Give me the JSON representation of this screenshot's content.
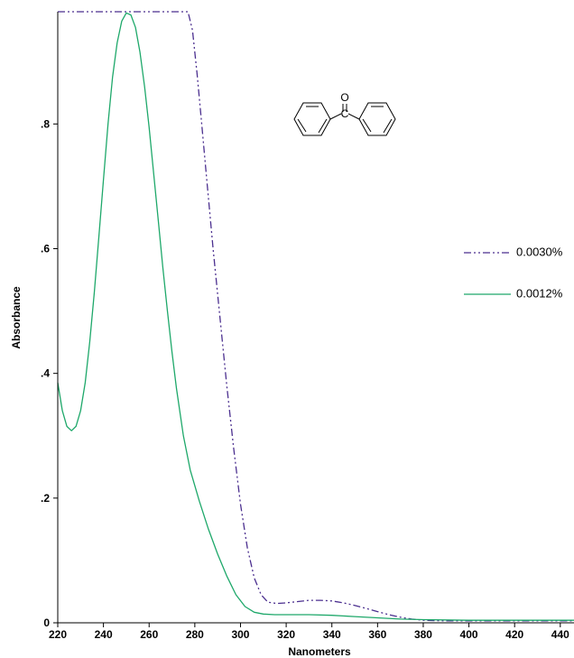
{
  "chart_data": {
    "type": "line",
    "xlabel": "Nanometers",
    "ylabel": "Absorbance",
    "xlim": [
      220,
      446
    ],
    "ylim": [
      0,
      0.98
    ],
    "x_ticks": [
      220,
      240,
      260,
      280,
      300,
      320,
      340,
      360,
      380,
      400,
      420,
      440
    ],
    "x_tick_labels": [
      "220",
      "240",
      "260",
      "280",
      "300",
      "320",
      "340",
      "360",
      "380",
      "400",
      "420",
      "440"
    ],
    "y_ticks": [
      0,
      0.2,
      0.4,
      0.6,
      0.8
    ],
    "y_tick_labels": [
      "0",
      ".2",
      ".4",
      ".6",
      ".8"
    ],
    "legend_placement": "right",
    "structure_labels": {
      "oxygen": "O",
      "carbon": "C"
    },
    "series": [
      {
        "name": "0.0030%",
        "color": "#4b2f8f",
        "dash": "dash-dot-dot",
        "x": [
          220,
          230,
          240,
          250,
          260,
          270,
          277,
          279,
          281,
          283,
          285,
          288,
          291,
          294,
          297,
          300,
          303,
          306,
          309,
          312,
          316,
          320,
          325,
          330,
          335,
          340,
          345,
          350,
          355,
          360,
          365,
          370,
          375,
          380,
          390,
          400,
          420,
          446
        ],
        "y": [
          0.98,
          0.98,
          0.98,
          0.98,
          0.98,
          0.98,
          0.98,
          0.95,
          0.88,
          0.8,
          0.72,
          0.6,
          0.49,
          0.38,
          0.28,
          0.19,
          0.12,
          0.072,
          0.045,
          0.033,
          0.031,
          0.032,
          0.034,
          0.036,
          0.036,
          0.035,
          0.032,
          0.028,
          0.023,
          0.018,
          0.013,
          0.009,
          0.006,
          0.004,
          0.003,
          0.003,
          0.003,
          0.003
        ]
      },
      {
        "name": "0.0012%",
        "color": "#1ea86a",
        "dash": "solid",
        "x": [
          220,
          222,
          224,
          226,
          228,
          230,
          232,
          234,
          236,
          238,
          240,
          242,
          244,
          246,
          248,
          250,
          252,
          254,
          256,
          258,
          260,
          262,
          264,
          266,
          268,
          270,
          272,
          275,
          278,
          282,
          286,
          290,
          294,
          298,
          302,
          306,
          310,
          315,
          320,
          330,
          340,
          350,
          360,
          370,
          380,
          400,
          420,
          446
        ],
        "y": [
          0.385,
          0.34,
          0.315,
          0.308,
          0.315,
          0.34,
          0.385,
          0.45,
          0.53,
          0.62,
          0.71,
          0.8,
          0.875,
          0.93,
          0.965,
          0.978,
          0.975,
          0.955,
          0.915,
          0.86,
          0.795,
          0.72,
          0.645,
          0.57,
          0.5,
          0.435,
          0.375,
          0.3,
          0.245,
          0.195,
          0.15,
          0.11,
          0.075,
          0.045,
          0.026,
          0.017,
          0.014,
          0.013,
          0.013,
          0.013,
          0.012,
          0.01,
          0.008,
          0.006,
          0.005,
          0.004,
          0.004,
          0.004
        ]
      }
    ]
  }
}
